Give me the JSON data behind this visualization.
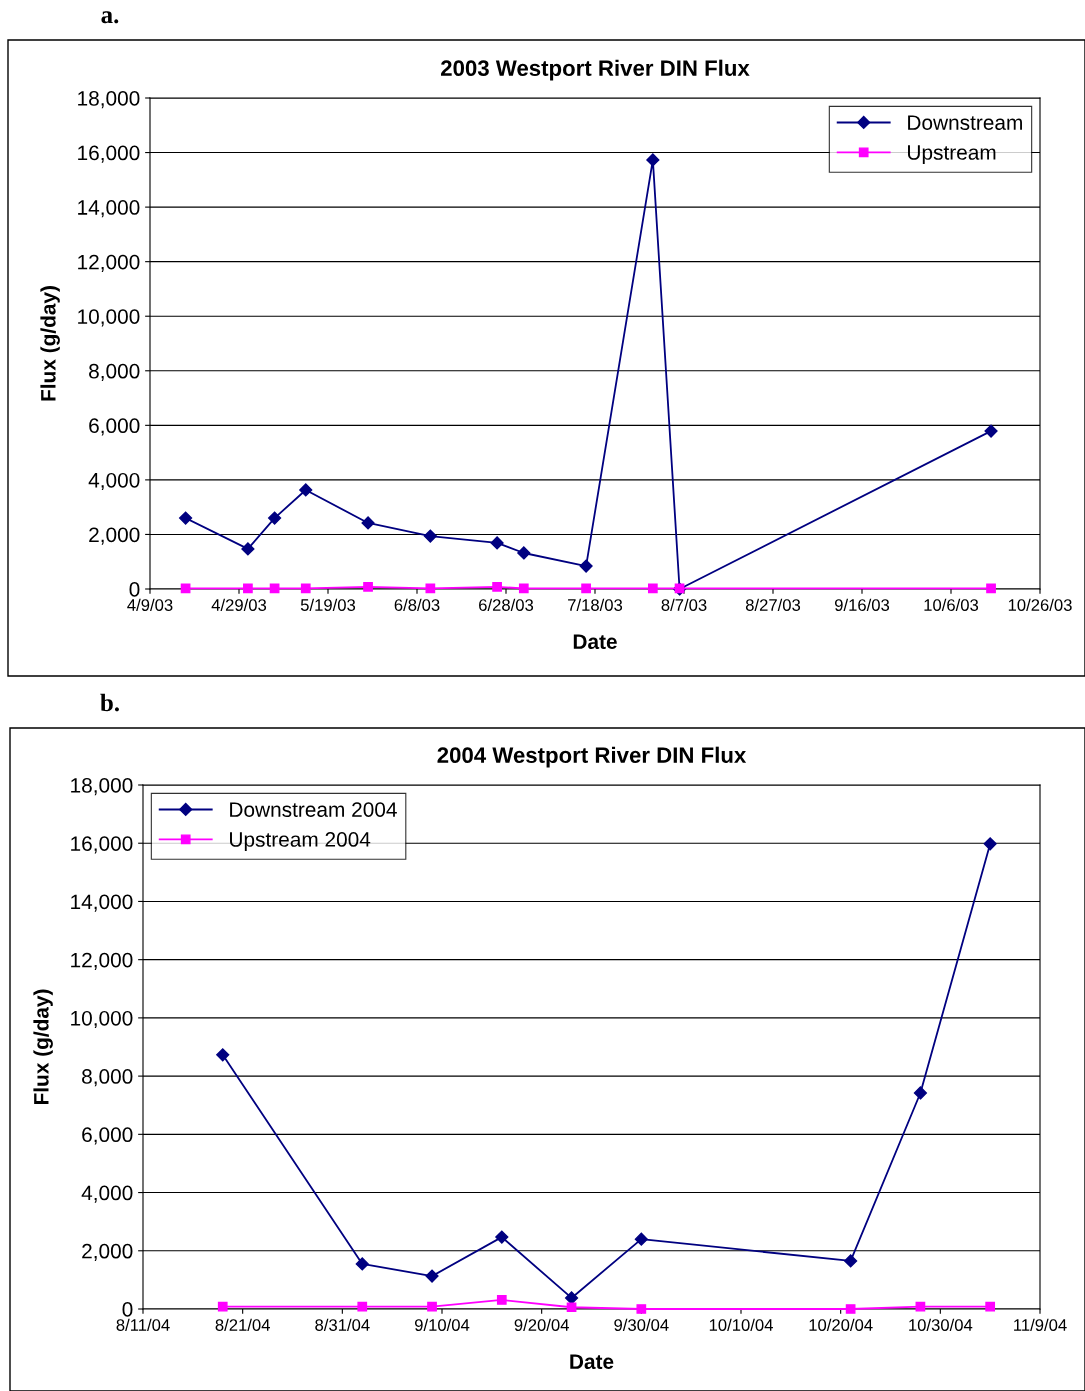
{
  "chart_data": [
    {
      "type": "line",
      "title": "2003 Westport River DIN Flux",
      "xlabel": "Date",
      "ylabel": "Flux (g/day)",
      "annotations": [
        "a."
      ],
      "x": [
        "2003-04-17",
        "2003-05-01",
        "2003-05-07",
        "2003-05-14",
        "2003-05-28",
        "2003-06-11",
        "2003-06-26",
        "2003-07-02",
        "2003-07-16",
        "2003-07-31",
        "2003-08-06",
        "2003-10-15"
      ],
      "series": [
        {
          "name": "Downstream",
          "color": "#000080",
          "marker": "diamond",
          "values": [
            2600,
            1470,
            2600,
            3630,
            2420,
            1940,
            1690,
            1320,
            840,
            15730,
            0,
            5790
          ]
        },
        {
          "name": "Upstream",
          "color": "#ff00ff",
          "marker": "square",
          "values": [
            20,
            20,
            20,
            20,
            80,
            20,
            80,
            20,
            20,
            20,
            20,
            20
          ]
        }
      ],
      "xlim": [
        "2003-04-09",
        "2003-10-26"
      ],
      "xticks": [
        {
          "value": "2003-04-09",
          "label": "4/9/03"
        },
        {
          "value": "2003-04-29",
          "label": "4/29/03"
        },
        {
          "value": "2003-05-19",
          "label": "5/19/03"
        },
        {
          "value": "2003-06-08",
          "label": "6/8/03"
        },
        {
          "value": "2003-06-28",
          "label": "6/28/03"
        },
        {
          "value": "2003-07-18",
          "label": "7/18/03"
        },
        {
          "value": "2003-08-07",
          "label": "8/7/03"
        },
        {
          "value": "2003-08-27",
          "label": "8/27/03"
        },
        {
          "value": "2003-09-16",
          "label": "9/16/03"
        },
        {
          "value": "2003-10-06",
          "label": "10/6/03"
        },
        {
          "value": "2003-10-26",
          "label": "10/26/03"
        }
      ],
      "ylim": [
        0,
        18000
      ],
      "yticks": [
        0,
        {
          "value": 2000,
          "label": "2,000"
        },
        {
          "value": 4000,
          "label": "4,000"
        },
        {
          "value": 6000,
          "label": "6,000"
        },
        {
          "value": 8000,
          "label": "8,000"
        },
        {
          "value": 10000,
          "label": "10,000"
        },
        {
          "value": 12000,
          "label": "12,000"
        },
        {
          "value": 14000,
          "label": "14,000"
        },
        {
          "value": 16000,
          "label": "16,000"
        },
        {
          "value": 18000,
          "label": "18,000"
        }
      ],
      "grid": "y",
      "legend": "top right",
      "line_style": "solid"
    },
    {
      "type": "line",
      "title": "2004 Westport River DIN Flux",
      "xlabel": "Date",
      "ylabel": "Flux (g/day)",
      "annotations": [
        "b."
      ],
      "x": [
        "2004-08-19",
        "2004-09-02",
        "2004-09-09",
        "2004-09-16",
        "2004-09-23",
        "2004-09-30",
        "2004-10-21",
        "2004-10-28",
        "2004-11-04"
      ],
      "series": [
        {
          "name": "Downstream 2004",
          "color": "#000080",
          "marker": "diamond",
          "values": [
            8730,
            1550,
            1130,
            2470,
            380,
            2400,
            1650,
            7420,
            15980
          ]
        },
        {
          "name": "Upstream 2004",
          "color": "#ff00ff",
          "marker": "square",
          "values": [
            80,
            80,
            80,
            310,
            60,
            0,
            0,
            80,
            80
          ]
        }
      ],
      "xlim": [
        "2004-08-11",
        "2004-11-09"
      ],
      "xticks": [
        {
          "value": "2004-08-11",
          "label": "8/11/04"
        },
        {
          "value": "2004-08-21",
          "label": "8/21/04"
        },
        {
          "value": "2004-08-31",
          "label": "8/31/04"
        },
        {
          "value": "2004-09-10",
          "label": "9/10/04"
        },
        {
          "value": "2004-09-20",
          "label": "9/20/04"
        },
        {
          "value": "2004-09-30",
          "label": "9/30/04"
        },
        {
          "value": "2004-10-10",
          "label": "10/10/04"
        },
        {
          "value": "2004-10-20",
          "label": "10/20/04"
        },
        {
          "value": "2004-10-30",
          "label": "10/30/04"
        },
        {
          "value": "2004-11-09",
          "label": "11/9/04"
        }
      ],
      "ylim": [
        0,
        18000
      ],
      "yticks": [
        0,
        {
          "value": 2000,
          "label": "2,000"
        },
        {
          "value": 4000,
          "label": "4,000"
        },
        {
          "value": 6000,
          "label": "6,000"
        },
        {
          "value": 8000,
          "label": "8,000"
        },
        {
          "value": 10000,
          "label": "10,000"
        },
        {
          "value": 12000,
          "label": "12,000"
        },
        {
          "value": 14000,
          "label": "14,000"
        },
        {
          "value": 16000,
          "label": "16,000"
        },
        {
          "value": 18000,
          "label": "18,000"
        }
      ],
      "grid": "y",
      "legend": "top left",
      "line_style": "solid"
    }
  ]
}
